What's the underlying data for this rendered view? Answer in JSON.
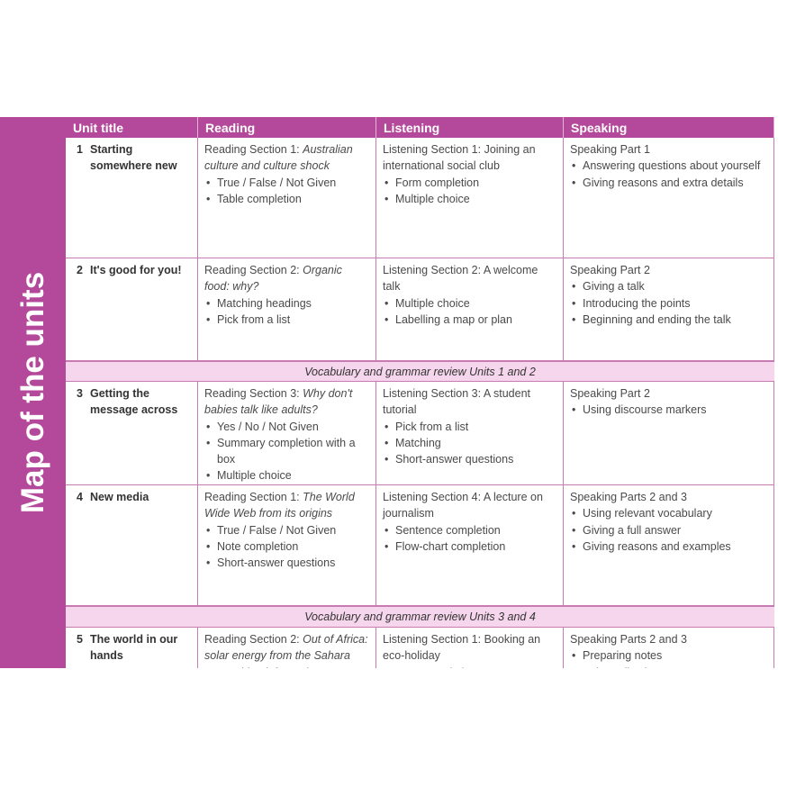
{
  "sidebar_title": "Map of the units",
  "header": {
    "columns": [
      "Unit title",
      "Reading",
      "Listening",
      "Speaking"
    ]
  },
  "rows": [
    {
      "number": "1",
      "title": "Starting somewhere new",
      "reading": {
        "head": "Reading Section 1:",
        "topic": "Australian culture and culture shock",
        "bullets": [
          "True / False / Not Given",
          "Table completion"
        ]
      },
      "listening": {
        "head": "Listening Section 1: Joining an international social club",
        "bullets": [
          "Form completion",
          "Multiple choice"
        ]
      },
      "speaking": {
        "head": "Speaking Part 1",
        "bullets": [
          "Answering questions about yourself",
          "Giving reasons and extra details"
        ]
      }
    },
    {
      "number": "2",
      "title": "It's good for you!",
      "reading": {
        "head": "Reading Section 2:",
        "topic": "Organic food: why?",
        "bullets": [
          "Matching headings",
          "Pick from a list"
        ]
      },
      "listening": {
        "head": "Listening Section 2: A welcome talk",
        "bullets": [
          "Multiple choice",
          "Labelling a map or plan"
        ]
      },
      "speaking": {
        "head": "Speaking Part 2",
        "bullets": [
          "Giving a talk",
          "Introducing the points",
          "Beginning and ending the talk"
        ]
      }
    },
    {
      "review": "Vocabulary and grammar review Units 1 and 2"
    },
    {
      "number": "3",
      "title": "Getting the message across",
      "reading": {
        "head": "Reading Section 3:",
        "topic": "Why don't babies talk like adults?",
        "bullets": [
          "Yes / No / Not Given",
          "Summary completion with a box",
          "Multiple choice"
        ]
      },
      "listening": {
        "head": "Listening Section 3: A student tutorial",
        "bullets": [
          "Pick from a list",
          "Matching",
          "Short-answer questions"
        ]
      },
      "speaking": {
        "head": "Speaking Part 2",
        "bullets": [
          "Using discourse markers"
        ]
      }
    },
    {
      "number": "4",
      "title": "New media",
      "reading": {
        "head": "Reading Section 1:",
        "topic": "The World Wide Web from its origins",
        "bullets": [
          "True / False / Not Given",
          "Note completion",
          "Short-answer questions"
        ]
      },
      "listening": {
        "head": "Listening Section 4: A lecture on journalism",
        "bullets": [
          "Sentence completion",
          "Flow-chart completion"
        ]
      },
      "speaking": {
        "head": "Speaking Parts 2 and 3",
        "bullets": [
          "Using relevant vocabulary",
          "Giving a full answer",
          "Giving reasons and examples"
        ]
      }
    },
    {
      "review": "Vocabulary and grammar review Units 3 and 4"
    },
    {
      "number": "5",
      "title": "The world in our hands",
      "reading": {
        "head": "Reading Section 2:",
        "topic": "Out of Africa: solar energy from the Sahara",
        "bullets": [
          "Matching information"
        ]
      },
      "listening": {
        "head": "Listening Section 1: Booking an eco-holiday",
        "bullets": [
          "Note completion"
        ]
      },
      "speaking": {
        "head": "Speaking Parts 2 and 3",
        "bullets": [
          "Preparing notes",
          "Using adjectives"
        ]
      }
    }
  ]
}
